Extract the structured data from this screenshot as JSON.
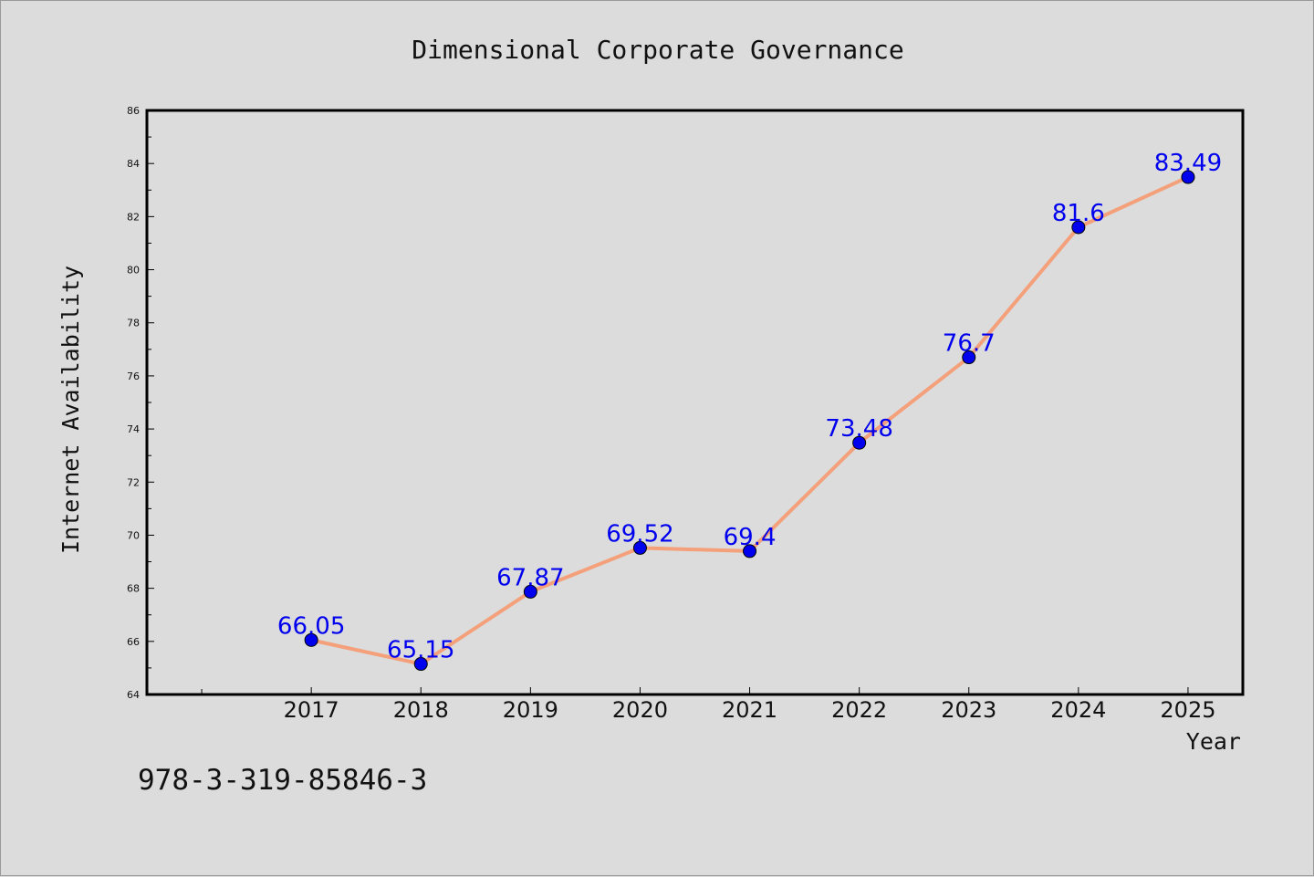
{
  "page": {
    "isbn": "978-3-319-85846-3"
  },
  "chart_data": {
    "type": "line",
    "title": "Dimensional Corporate Governance",
    "xlabel": "Year",
    "ylabel": "Internet Availability",
    "x": [
      2017,
      2018,
      2019,
      2020,
      2021,
      2022,
      2023,
      2024,
      2025
    ],
    "categories": [
      "2017",
      "2018",
      "2019",
      "2020",
      "2021",
      "2022",
      "2023",
      "2024",
      "2025"
    ],
    "values": [
      66.05,
      65.15,
      67.87,
      69.52,
      69.4,
      73.48,
      76.7,
      81.6,
      83.49
    ],
    "data_labels": [
      "66.05",
      "65.15",
      "67.87",
      "69.52",
      "69.4",
      "73.48",
      "76.7",
      "81.6",
      "83.49"
    ],
    "ylim": [
      64,
      86
    ],
    "yticks": [
      64,
      66,
      68,
      70,
      72,
      74,
      76,
      78,
      80,
      82,
      84,
      86
    ],
    "xlim": [
      2015.5,
      2025.5
    ],
    "grid": false,
    "colors": {
      "line": "#f4a07a",
      "marker": "#0000ee",
      "data_label": "#0000ee",
      "frame": "#000000"
    }
  }
}
